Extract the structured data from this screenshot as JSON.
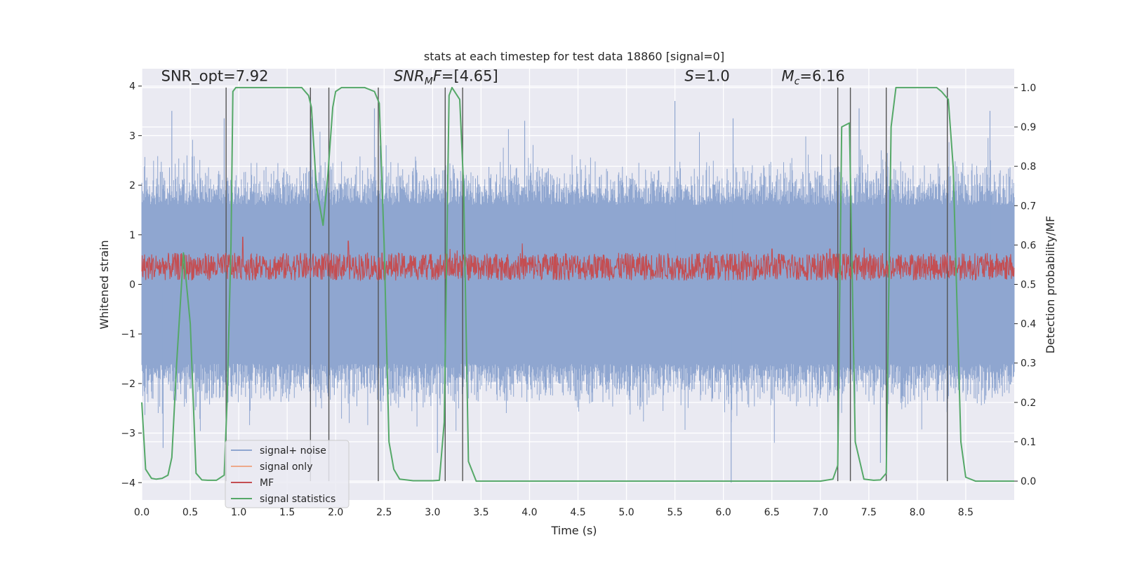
{
  "chart_data": {
    "type": "line",
    "title": "stats at each timestep for test data 18860 [signal=0]",
    "xlabel": "Time (s)",
    "ylabel": "Whitened strain",
    "ylabel_right": "Detection probability/MF",
    "xlim": [
      0.0,
      9.0
    ],
    "ylim": [
      -4.35,
      4.35
    ],
    "ylim_right": [
      -0.048,
      1.048
    ],
    "x_ticks": [
      0.0,
      0.5,
      1.0,
      1.5,
      2.0,
      2.5,
      3.0,
      3.5,
      4.0,
      4.5,
      5.0,
      5.5,
      6.0,
      6.5,
      7.0,
      7.5,
      8.0,
      8.5
    ],
    "x_tick_labels": [
      "0.0",
      "0.5",
      "1.0",
      "1.5",
      "2.0",
      "2.5",
      "3.0",
      "3.5",
      "4.0",
      "4.5",
      "5.0",
      "5.5",
      "6.0",
      "6.5",
      "7.0",
      "7.5",
      "8.0",
      "8.5"
    ],
    "y_ticks": [
      -4,
      -3,
      -2,
      -1,
      0,
      1,
      2,
      3,
      4
    ],
    "y_tick_labels": [
      "−4",
      "−3",
      "−2",
      "−1",
      "0",
      "1",
      "2",
      "3",
      "4"
    ],
    "y_ticks_right": [
      0.0,
      0.1,
      0.2,
      0.3,
      0.4,
      0.5,
      0.6,
      0.7,
      0.8,
      0.9,
      1.0
    ],
    "y_tick_labels_right": [
      "0.0",
      "0.1",
      "0.2",
      "0.3",
      "0.4",
      "0.5",
      "0.6",
      "0.7",
      "0.8",
      "0.9",
      "1.0"
    ],
    "annotations": [
      {
        "text": "SNR_opt=7.92",
        "x": 0.2,
        "y": 4.1
      },
      {
        "text": "SNR_M F=[4.65]",
        "x": 2.6,
        "y": 4.1
      },
      {
        "text": "S=1.0",
        "x": 5.6,
        "y": 4.1
      },
      {
        "text": "M_c=6.16",
        "x": 6.6,
        "y": 4.1
      }
    ],
    "legend": {
      "position": "lower-left",
      "entries": [
        {
          "label": "signal+ noise",
          "color": "#8fa6d0"
        },
        {
          "label": "signal only",
          "color": "#eea98a"
        },
        {
          "label": "MF",
          "color": "#c44e52"
        },
        {
          "label": "signal statistics",
          "color": "#55a868"
        }
      ]
    },
    "series": [
      {
        "name": "signal+ noise",
        "color": "#8fa6d0",
        "description": "dense whitened strain noise envelope, approx range",
        "band_core": [
          -1.6,
          1.6
        ],
        "spike_peaks": [
          {
            "x": 0.31,
            "y": 3.5
          },
          {
            "x": 0.85,
            "y": 3.35
          },
          {
            "x": 1.75,
            "y": 3.35
          },
          {
            "x": 2.4,
            "y": 3.55
          },
          {
            "x": 3.95,
            "y": 3.3
          },
          {
            "x": 5.5,
            "y": 3.7
          },
          {
            "x": 6.1,
            "y": 3.35
          },
          {
            "x": 7.4,
            "y": 3.55
          },
          {
            "x": 8.75,
            "y": 3.5
          },
          {
            "x": 3.05,
            "y": -3.4
          },
          {
            "x": 6.08,
            "y": -4.0
          },
          {
            "x": 7.62,
            "y": -3.6
          },
          {
            "x": 0.22,
            "y": -3.3
          }
        ]
      },
      {
        "name": "MF",
        "color": "#c44e52",
        "axis": "right",
        "description": "matched-filter output, mostly between 0.52 and 0.58 with peaks",
        "baseline_range": [
          0.5,
          0.58
        ],
        "peaks": [
          {
            "x": 1.04,
            "y": 0.62
          },
          {
            "x": 2.13,
            "y": 0.61
          },
          {
            "x": 3.18,
            "y": 0.59
          },
          {
            "x": 6.5,
            "y": 0.59
          },
          {
            "x": 7.1,
            "y": 0.59
          }
        ]
      },
      {
        "name": "signal statistics",
        "color": "#55a868",
        "axis": "right",
        "x": [
          0.0,
          0.04,
          0.1,
          0.15,
          0.21,
          0.27,
          0.31,
          0.36,
          0.43,
          0.5,
          0.56,
          0.62,
          0.68,
          0.77,
          0.85,
          0.88,
          0.92,
          0.94,
          0.97,
          1.0,
          1.1,
          1.3,
          1.5,
          1.65,
          1.72,
          1.75,
          1.8,
          1.87,
          1.92,
          1.97,
          2.0,
          2.06,
          2.15,
          2.3,
          2.4,
          2.45,
          2.5,
          2.55,
          2.6,
          2.66,
          2.8,
          3.0,
          3.07,
          3.12,
          3.17,
          3.2,
          3.28,
          3.32,
          3.37,
          3.45,
          3.6,
          4.0,
          5.0,
          6.0,
          7.0,
          7.13,
          7.18,
          7.22,
          7.3,
          7.36,
          7.45,
          7.55,
          7.62,
          7.68,
          7.73,
          7.78,
          7.9,
          8.1,
          8.2,
          8.25,
          8.32,
          8.37,
          8.45,
          8.5,
          8.6,
          8.8,
          9.0
        ],
        "values": [
          0.2,
          0.03,
          0.007,
          0.005,
          0.007,
          0.015,
          0.06,
          0.3,
          0.58,
          0.4,
          0.02,
          0.003,
          0.002,
          0.002,
          0.015,
          0.2,
          0.6,
          0.99,
          1.0,
          1.0,
          1.0,
          1.0,
          1.0,
          1.0,
          0.98,
          0.95,
          0.75,
          0.65,
          0.78,
          0.95,
          0.99,
          1.0,
          1.0,
          1.0,
          0.99,
          0.96,
          0.6,
          0.1,
          0.03,
          0.005,
          0.001,
          0.001,
          0.002,
          0.15,
          0.98,
          1.0,
          0.97,
          0.75,
          0.05,
          0.0,
          0.0,
          0.0,
          0.0,
          0.0,
          0.0,
          0.005,
          0.04,
          0.9,
          0.91,
          0.1,
          0.005,
          0.002,
          0.003,
          0.02,
          0.9,
          1.0,
          1.0,
          1.0,
          1.0,
          0.99,
          0.97,
          0.8,
          0.1,
          0.01,
          0.0,
          0.0,
          0.0
        ]
      }
    ],
    "vertical_lines": [
      0.87,
      1.74,
      1.93,
      2.44,
      3.13,
      3.31,
      7.18,
      7.31,
      7.68,
      8.31
    ]
  }
}
